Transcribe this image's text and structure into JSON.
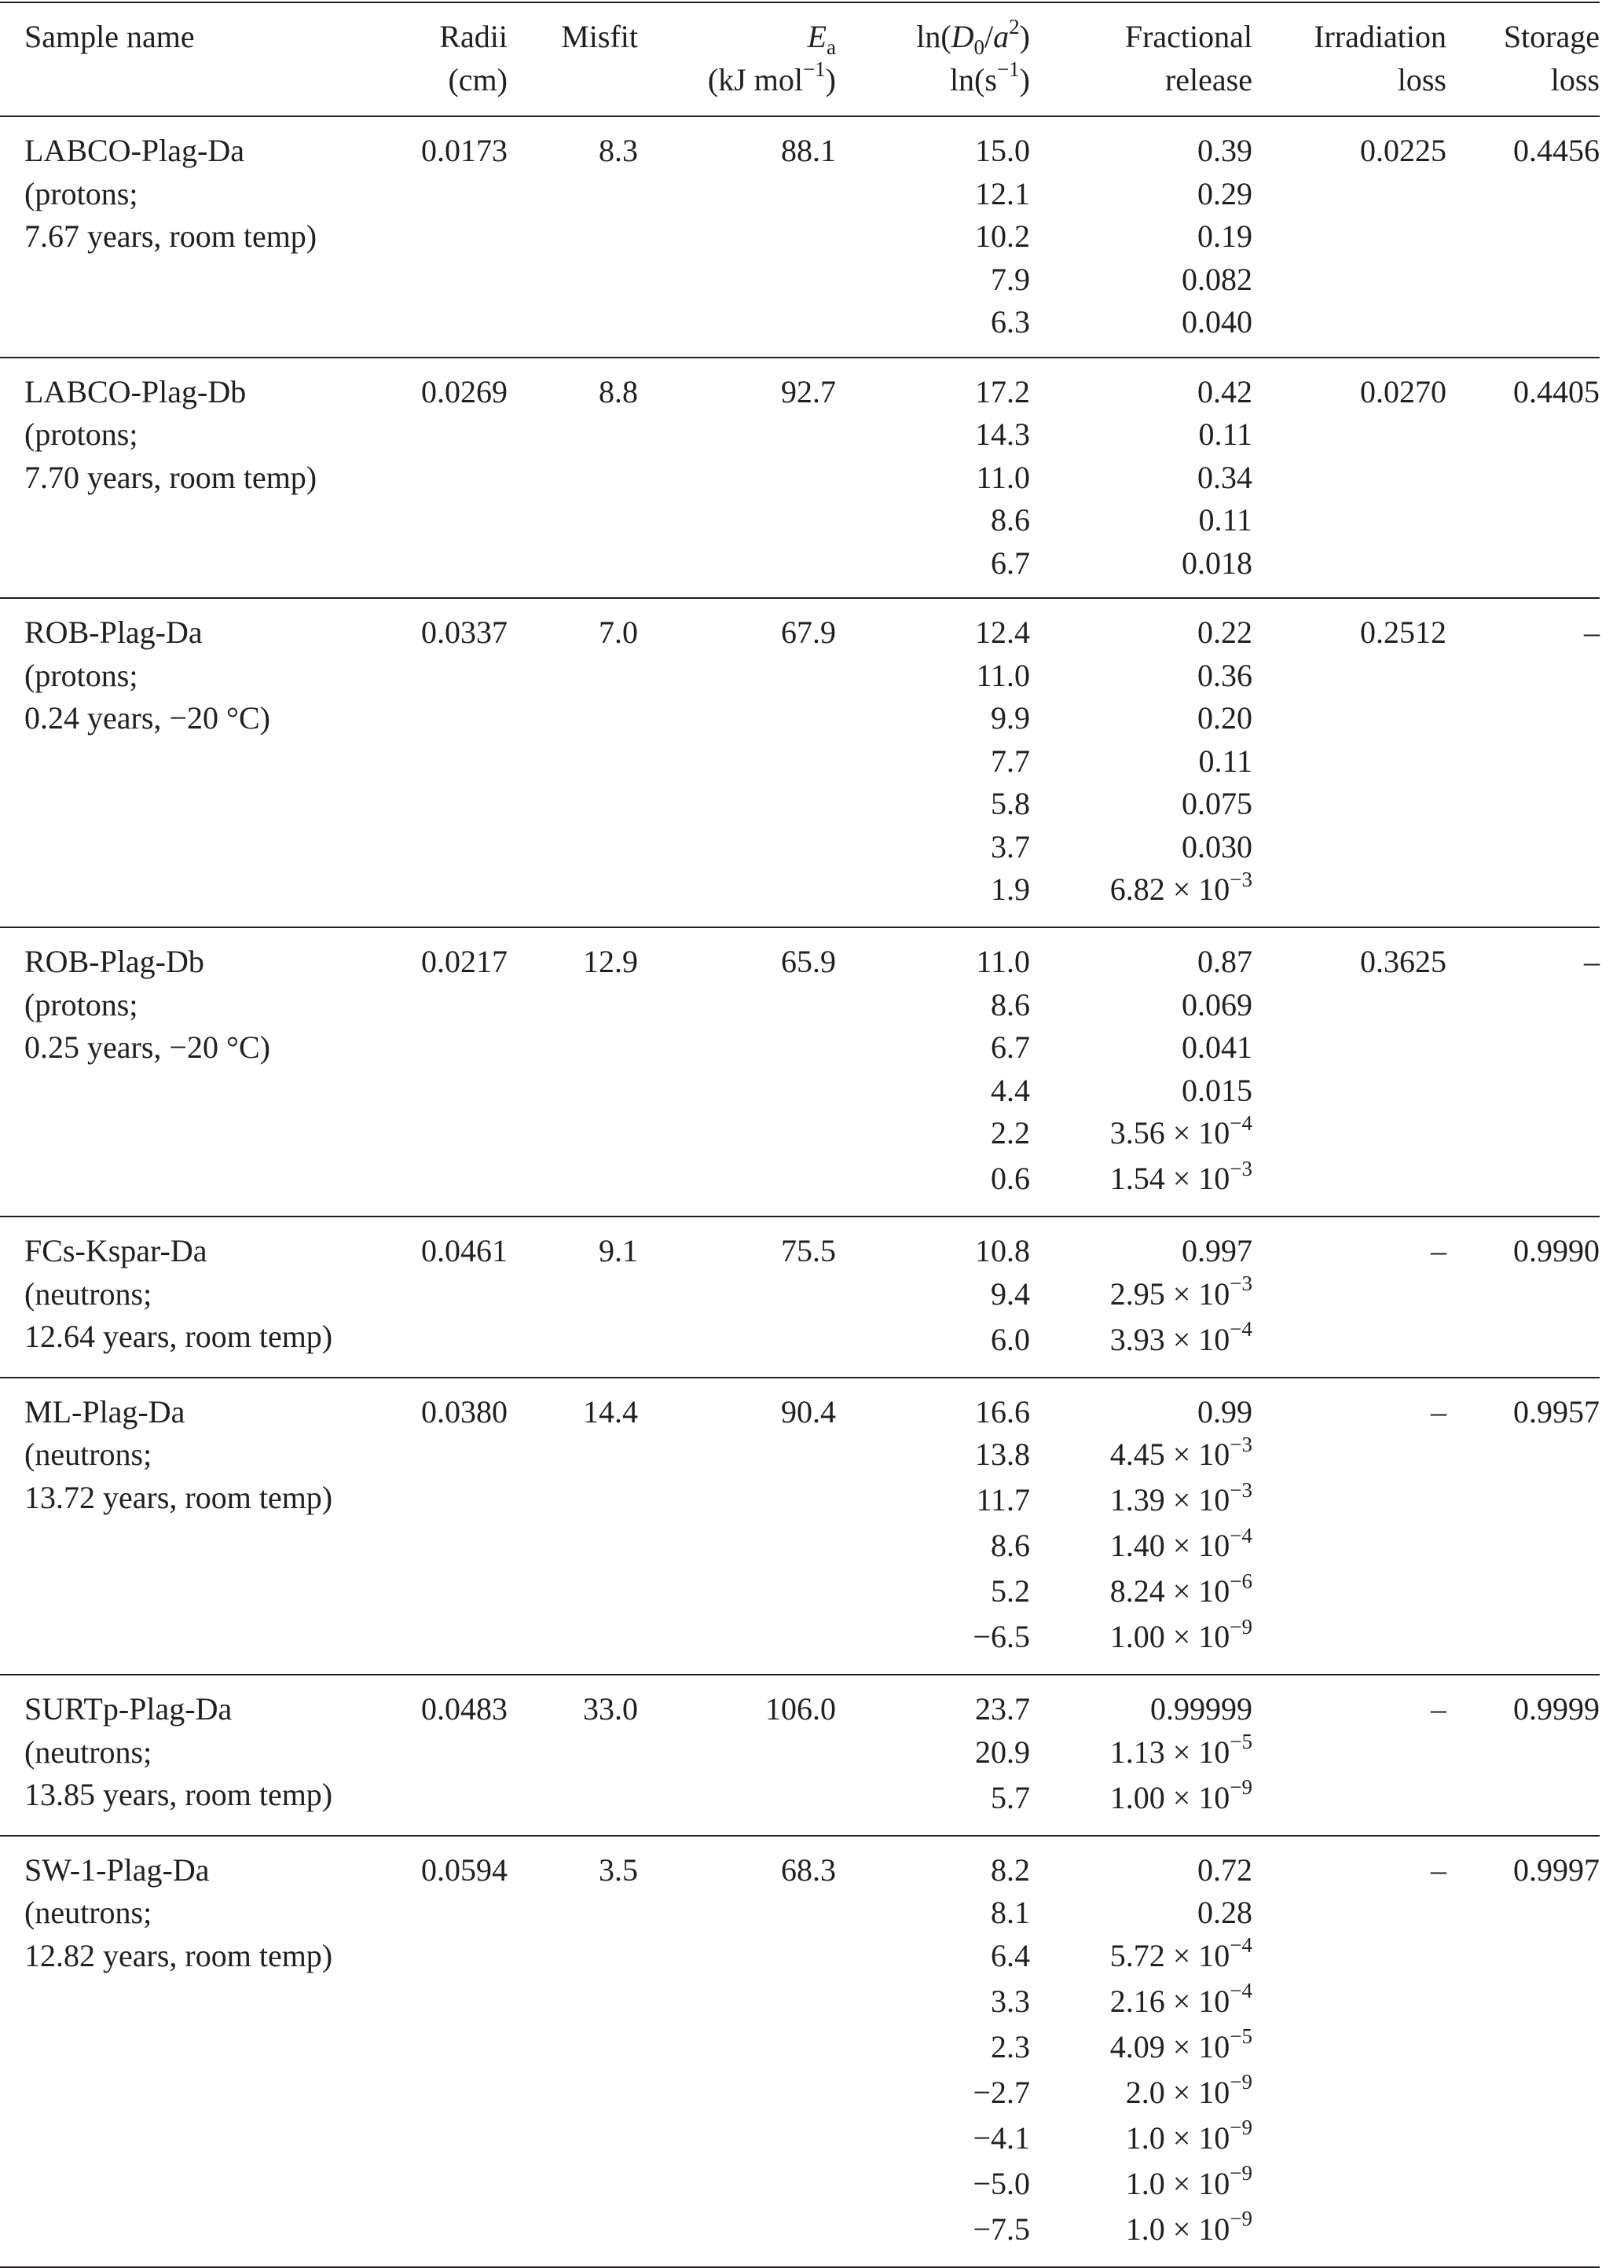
{
  "table": {
    "headers": {
      "sample": "Sample name",
      "radii": [
        "Radii",
        "(cm)"
      ],
      "misfit": "Misfit",
      "ea": {
        "sym": "E",
        "sub": "a",
        "unit_pre": "(kJ mol",
        "unit_exp": "−1",
        "unit_post": ")"
      },
      "lnd": {
        "pre": "ln(",
        "d": "D",
        "dsub": "0",
        "slash": "/",
        "a": "a",
        "aexp": "2",
        "post": ")",
        "unit_pre": "ln(s",
        "unit_exp": "−1",
        "unit_post": ")"
      },
      "fractional": [
        "Fractional",
        "release"
      ],
      "irradiation": [
        "Irradiation",
        "loss"
      ],
      "storage": [
        "Storage",
        "loss"
      ]
    },
    "rows": [
      {
        "name": [
          "LABCO-Plag-Da",
          "(protons;",
          "7.67 years, room temp)"
        ],
        "radii": "0.0173",
        "misfit": "8.3",
        "ea": "88.1",
        "lnd": [
          "15.0",
          "12.1",
          "10.2",
          "7.9",
          "6.3"
        ],
        "fr": [
          "0.39",
          "0.29",
          "0.19",
          "0.082",
          "0.040"
        ],
        "irr": "0.0225",
        "storage": "0.4456"
      },
      {
        "name": [
          "LABCO-Plag-Db",
          "(protons;",
          "7.70 years, room temp)"
        ],
        "radii": "0.0269",
        "misfit": "8.8",
        "ea": "92.7",
        "lnd": [
          "17.2",
          "14.3",
          "11.0",
          "8.6",
          "6.7"
        ],
        "fr": [
          "0.42",
          "0.11",
          "0.34",
          "0.11",
          "0.018"
        ],
        "irr": "0.0270",
        "storage": "0.4405"
      },
      {
        "name": [
          "ROB-Plag-Da",
          "(protons;",
          "0.24 years, −20 °C)"
        ],
        "radii": "0.0337",
        "misfit": "7.0",
        "ea": "67.9",
        "lnd": [
          "12.4",
          "11.0",
          "9.9",
          "7.7",
          "5.8",
          "3.7",
          "1.9"
        ],
        "fr": [
          "0.22",
          "0.36",
          "0.20",
          "0.11",
          "0.075",
          "0.030",
          "6.82 × 10^−3"
        ],
        "irr": "0.2512",
        "storage": "–"
      },
      {
        "name": [
          "ROB-Plag-Db",
          "(protons;",
          "0.25 years, −20 °C)"
        ],
        "radii": "0.0217",
        "misfit": "12.9",
        "ea": "65.9",
        "lnd": [
          "11.0",
          "8.6",
          "6.7",
          "4.4",
          "2.2",
          "0.6"
        ],
        "fr": [
          "0.87",
          "0.069",
          "0.041",
          "0.015",
          "3.56 × 10^−4",
          "1.54 × 10^−3"
        ],
        "irr": "0.3625",
        "storage": "–"
      },
      {
        "name": [
          "FCs-Kspar-Da",
          "(neutrons;",
          "12.64 years, room temp)"
        ],
        "radii": "0.0461",
        "misfit": "9.1",
        "ea": "75.5",
        "lnd": [
          "10.8",
          "9.4",
          "6.0"
        ],
        "fr": [
          "0.997",
          "2.95 × 10^−3",
          "3.93 × 10^−4"
        ],
        "irr": "–",
        "storage": "0.9990"
      },
      {
        "name": [
          "ML-Plag-Da",
          "(neutrons;",
          "13.72 years, room temp)"
        ],
        "radii": "0.0380",
        "misfit": "14.4",
        "ea": "90.4",
        "lnd": [
          "16.6",
          "13.8",
          "11.7",
          "8.6",
          "5.2",
          "−6.5"
        ],
        "fr": [
          "0.99",
          "4.45 × 10^−3",
          "1.39 × 10^−3",
          "1.40 × 10^−4",
          "8.24 × 10^−6",
          "1.00 × 10^−9"
        ],
        "irr": "–",
        "storage": "0.9957"
      },
      {
        "name": [
          "SURTp-Plag-Da",
          "(neutrons;",
          "13.85 years, room temp)"
        ],
        "radii": "0.0483",
        "misfit": "33.0",
        "ea": "106.0",
        "lnd": [
          "23.7",
          "20.9",
          "5.7"
        ],
        "fr": [
          "0.99999",
          "1.13 × 10^−5",
          "1.00 × 10^−9"
        ],
        "irr": "–",
        "storage": "0.9999"
      },
      {
        "name": [
          "SW-1-Plag-Da",
          "(neutrons;",
          "12.82 years, room temp)"
        ],
        "radii": "0.0594",
        "misfit": "3.5",
        "ea": "68.3",
        "lnd": [
          "8.2",
          "8.1",
          "6.4",
          "3.3",
          "2.3",
          "−2.7",
          "−4.1",
          "−5.0",
          "−7.5"
        ],
        "fr": [
          "0.72",
          "0.28",
          "5.72 × 10^−4",
          "2.16 × 10^−4",
          "4.09 × 10^−5",
          "2.0 × 10^−9",
          "1.0 × 10^−9",
          "1.0 × 10^−9",
          "1.0 × 10^−9"
        ],
        "irr": "–",
        "storage": "0.9997"
      }
    ]
  }
}
